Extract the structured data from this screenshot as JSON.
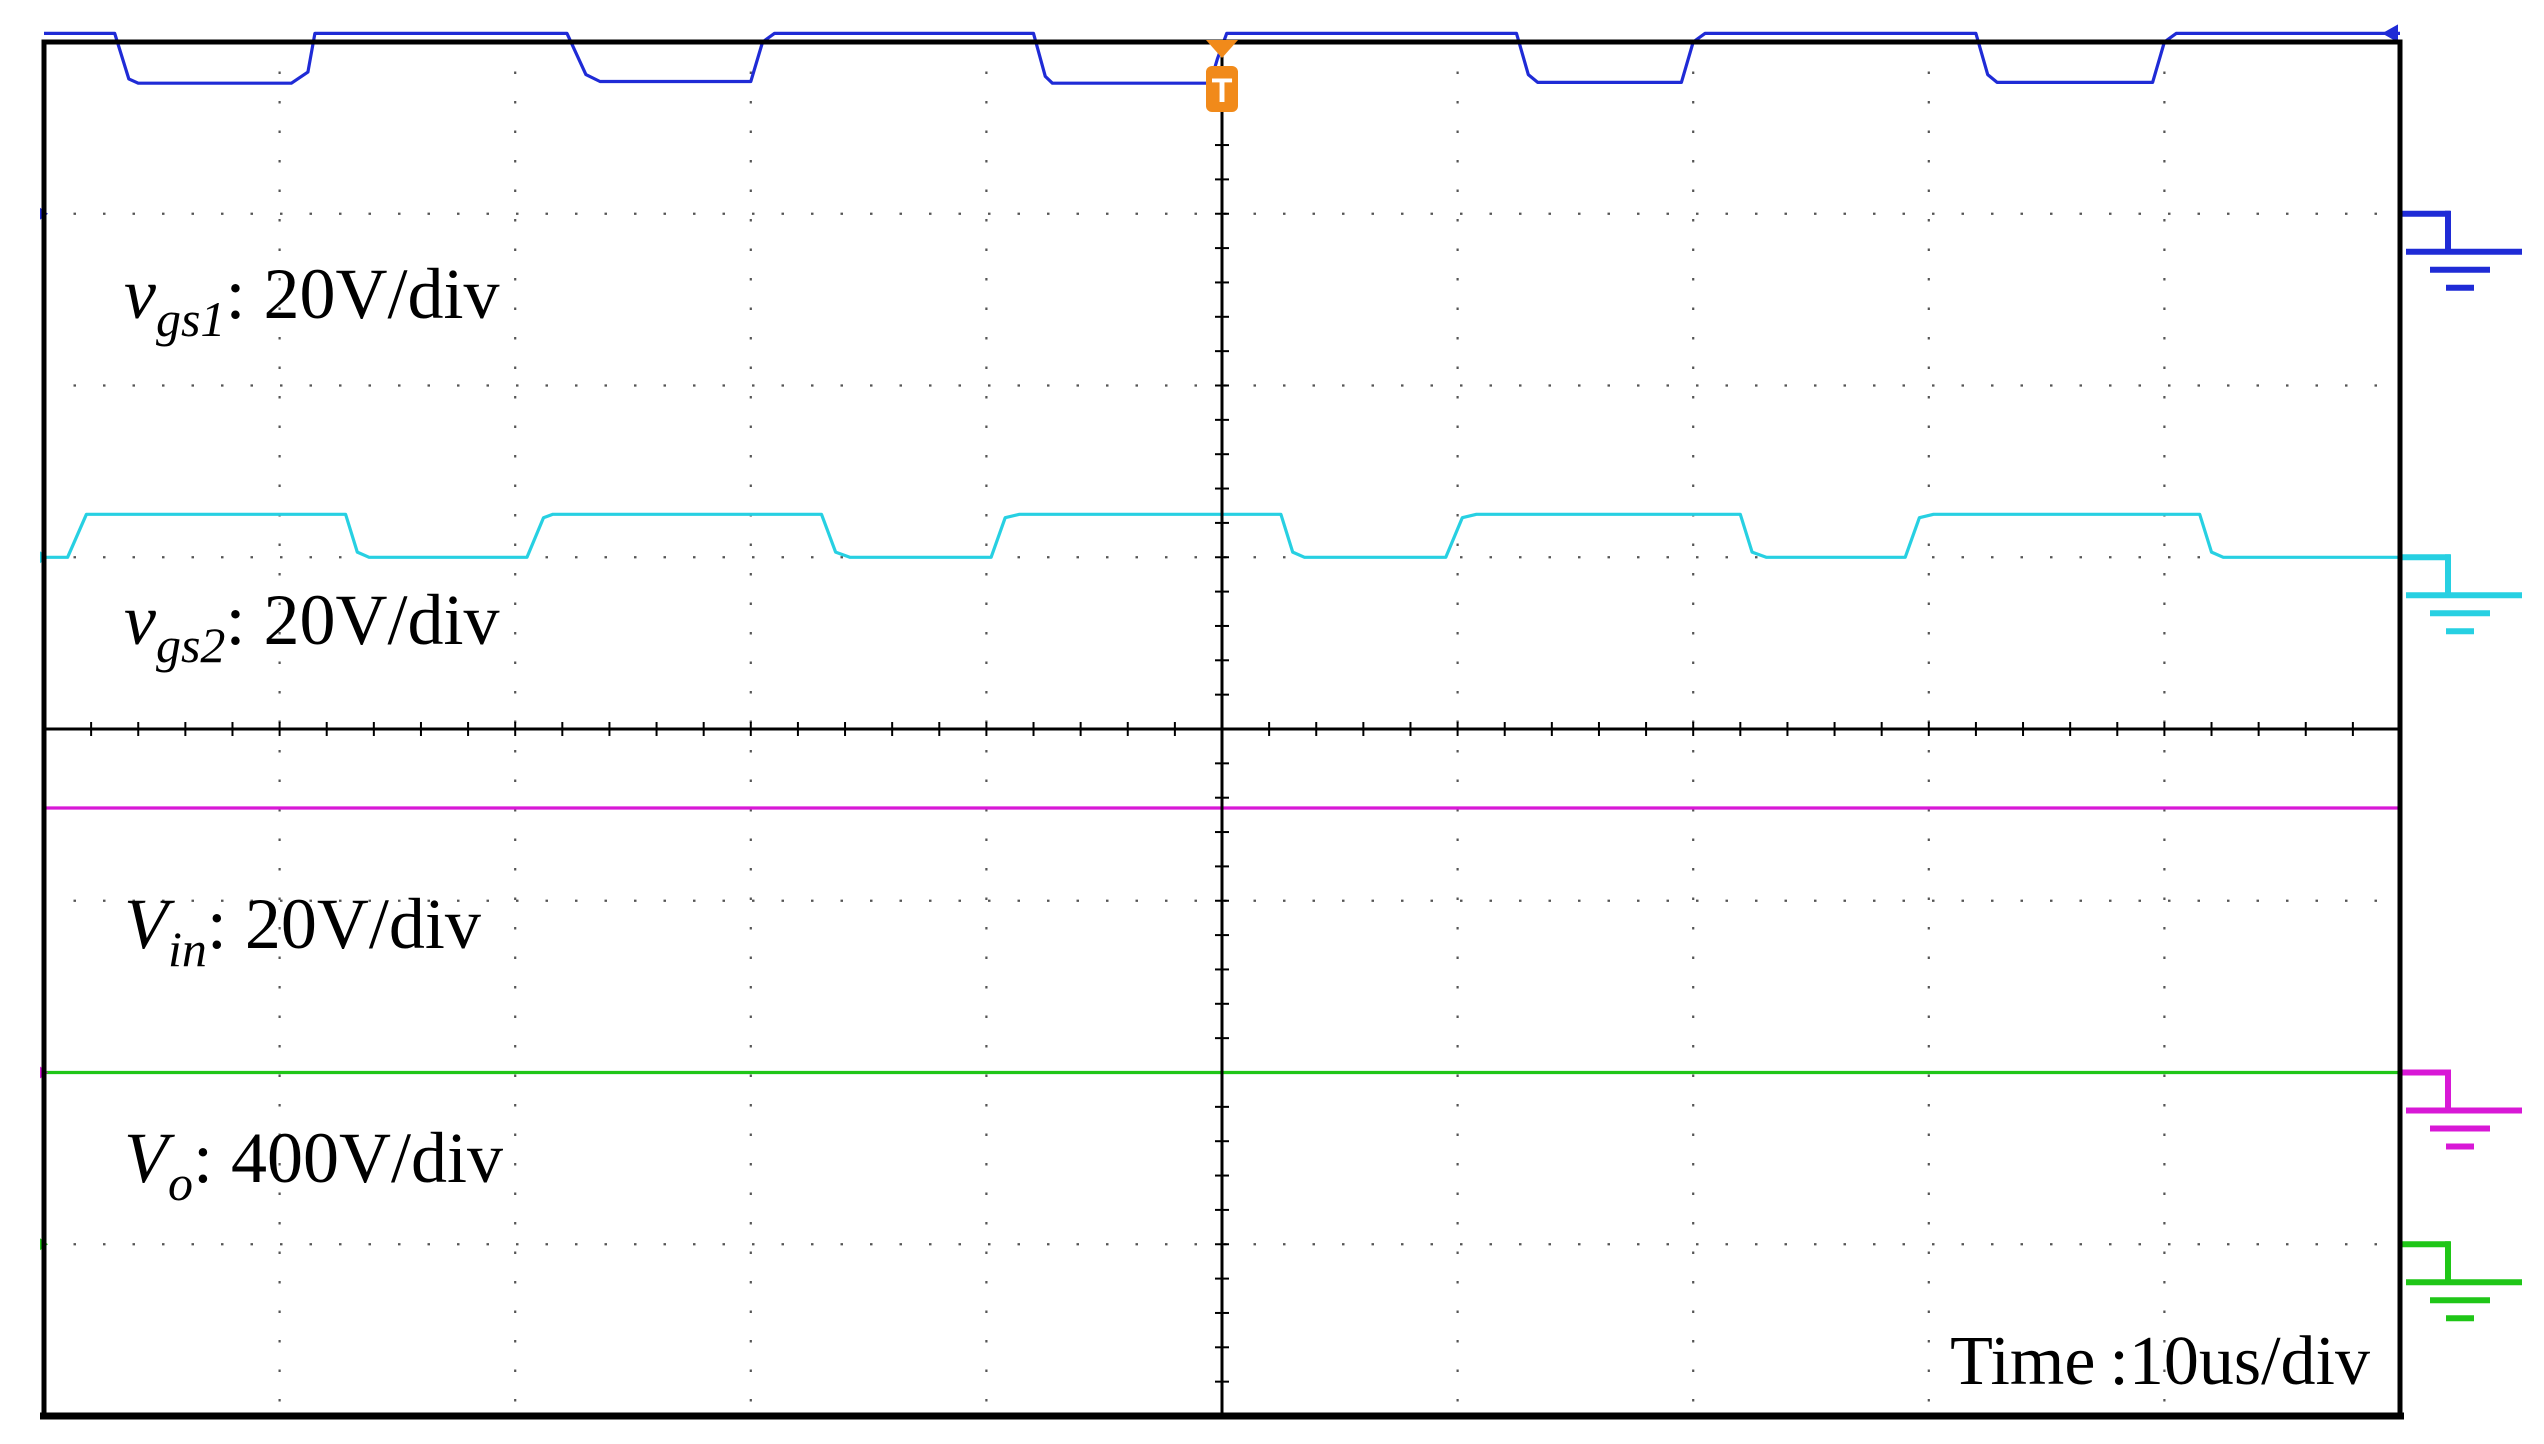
{
  "chart_data": {
    "type": "line",
    "title": "",
    "x_divisions": 10,
    "y_divisions": 8,
    "grid": true,
    "trigger_marker": "T",
    "time_base": {
      "label": "Time",
      "value": "10us/div"
    },
    "x": [
      0,
      0.82,
      0.95,
      1.1,
      2.23,
      2.42,
      3.0,
      3.27,
      3.33,
      4.2,
      4.34,
      4.4,
      4.5,
      4.97,
      5.08,
      5.1,
      6.22,
      6.35,
      7.0,
      7.2,
      7.3,
      8.0,
      8.22,
      8.28,
      9.0,
      9.2,
      9.35,
      10.0
    ],
    "series": [
      {
        "name_main": "v",
        "name_sub": "gs1",
        "scale": ": 20V/div",
        "color": "#1f2bd6",
        "ground_div": 7.0,
        "x": [
          0,
          0.3,
          0.36,
          0.4,
          1.05,
          1.12,
          1.15,
          2.22,
          2.3,
          2.36,
          3.0,
          3.05,
          3.1,
          4.2,
          4.25,
          4.28,
          4.95,
          4.98,
          5.02,
          6.25,
          6.3,
          6.34,
          6.95,
          7.0,
          7.05,
          8.2,
          8.25,
          8.29,
          8.95,
          9.0,
          9.05,
          10.0
        ],
        "y": [
          21,
          21,
          15.7,
          15.2,
          15.2,
          16.5,
          21,
          21,
          16.2,
          15.4,
          15.4,
          20,
          21,
          21,
          16,
          15.2,
          15.2,
          18,
          21,
          21,
          16.2,
          15.3,
          15.3,
          20,
          21,
          21,
          16.2,
          15.3,
          15.3,
          20,
          21,
          21
        ]
      },
      {
        "name_main": "v",
        "name_sub": "gs2",
        "scale": ": 20V/div",
        "color": "#27d0e2",
        "ground_div": 5.0,
        "x": [
          0,
          0.1,
          0.18,
          1.28,
          1.33,
          1.38,
          2.05,
          2.12,
          2.16,
          3.3,
          3.36,
          3.42,
          4.02,
          4.08,
          4.14,
          5.25,
          5.3,
          5.35,
          5.95,
          6.02,
          6.08,
          7.2,
          7.25,
          7.31,
          7.9,
          7.96,
          8.02,
          9.15,
          9.2,
          9.25,
          10.0
        ],
        "y": [
          0,
          0,
          5.0,
          5.0,
          0.6,
          0,
          0,
          4.6,
          5.0,
          5.0,
          0.6,
          0,
          0,
          4.6,
          5.0,
          5.0,
          0.6,
          0,
          0,
          4.6,
          5.0,
          5.0,
          0.6,
          0,
          0,
          4.6,
          5.0,
          5.0,
          0.6,
          0,
          0
        ]
      },
      {
        "name_main": "V",
        "name_sub": "in",
        "scale": ": 20V/div",
        "color": "#d818d6",
        "ground_div": 2.0,
        "x": [
          0,
          10.0
        ],
        "y": [
          30.8,
          30.8
        ]
      },
      {
        "name_main": "V",
        "name_sub": "o",
        "scale": ": 400V/div",
        "color": "#1fc617",
        "ground_div": 1.0,
        "x": [
          0,
          10.0
        ],
        "y": [
          400,
          400
        ]
      }
    ]
  }
}
